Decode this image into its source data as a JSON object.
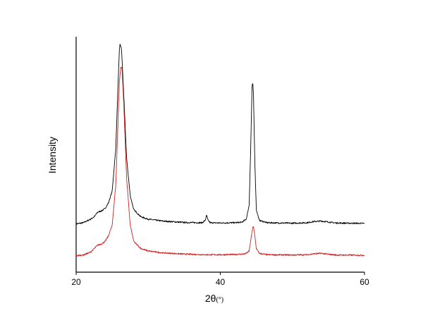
{
  "chart_data": {
    "type": "line",
    "title": "",
    "xlabel": {
      "main": "2θ",
      "unit": "(°)"
    },
    "ylabel": "Intensity",
    "xlim": [
      20,
      60
    ],
    "ylim": [
      0,
      1
    ],
    "xticks": [
      20,
      40,
      60
    ],
    "x_tick_labels": [
      "20",
      "40",
      "60"
    ],
    "grid": false,
    "legend": "none",
    "y_ticks_shown": false,
    "series": [
      {
        "color": "#000000",
        "offset": 0.205,
        "points": [
          [
            20.0,
            0.0
          ],
          [
            21.0,
            0.005
          ],
          [
            22.0,
            0.02
          ],
          [
            22.5,
            0.03
          ],
          [
            23.0,
            0.05
          ],
          [
            23.5,
            0.055
          ],
          [
            24.0,
            0.065
          ],
          [
            24.5,
            0.09
          ],
          [
            25.0,
            0.14
          ],
          [
            25.5,
            0.32
          ],
          [
            25.8,
            0.58
          ],
          [
            26.0,
            0.74
          ],
          [
            26.1,
            0.765
          ],
          [
            26.3,
            0.74
          ],
          [
            26.6,
            0.55
          ],
          [
            27.0,
            0.28
          ],
          [
            27.5,
            0.12
          ],
          [
            28.0,
            0.06
          ],
          [
            29.0,
            0.03
          ],
          [
            30.0,
            0.02
          ],
          [
            32.0,
            0.012
          ],
          [
            35.0,
            0.006
          ],
          [
            37.5,
            0.005
          ],
          [
            37.9,
            0.015
          ],
          [
            38.1,
            0.037
          ],
          [
            38.3,
            0.015
          ],
          [
            38.6,
            0.005
          ],
          [
            40.0,
            0.004
          ],
          [
            42.0,
            0.005
          ],
          [
            43.0,
            0.007
          ],
          [
            43.6,
            0.02
          ],
          [
            44.0,
            0.08
          ],
          [
            44.2,
            0.3
          ],
          [
            44.4,
            0.58
          ],
          [
            44.5,
            0.6
          ],
          [
            44.6,
            0.55
          ],
          [
            44.8,
            0.25
          ],
          [
            45.0,
            0.06
          ],
          [
            45.4,
            0.015
          ],
          [
            46.5,
            0.005
          ],
          [
            50.0,
            0.003
          ],
          [
            52.0,
            0.005
          ],
          [
            53.0,
            0.01
          ],
          [
            54.0,
            0.012
          ],
          [
            55.0,
            0.008
          ],
          [
            56.0,
            0.004
          ],
          [
            60.0,
            0.002
          ]
        ]
      },
      {
        "color": "#d42020",
        "offset": 0.07,
        "points": [
          [
            20.0,
            0.0
          ],
          [
            21.0,
            0.003
          ],
          [
            22.0,
            0.015
          ],
          [
            22.5,
            0.03
          ],
          [
            23.0,
            0.045
          ],
          [
            23.5,
            0.05
          ],
          [
            24.0,
            0.06
          ],
          [
            24.5,
            0.085
          ],
          [
            25.0,
            0.13
          ],
          [
            25.5,
            0.3
          ],
          [
            25.8,
            0.56
          ],
          [
            26.0,
            0.74
          ],
          [
            26.2,
            0.8
          ],
          [
            26.35,
            0.8
          ],
          [
            26.6,
            0.65
          ],
          [
            27.0,
            0.33
          ],
          [
            27.5,
            0.13
          ],
          [
            28.0,
            0.06
          ],
          [
            29.0,
            0.03
          ],
          [
            30.0,
            0.02
          ],
          [
            32.0,
            0.012
          ],
          [
            35.0,
            0.007
          ],
          [
            38.0,
            0.004
          ],
          [
            40.0,
            0.004
          ],
          [
            42.0,
            0.005
          ],
          [
            43.5,
            0.008
          ],
          [
            44.0,
            0.02
          ],
          [
            44.2,
            0.06
          ],
          [
            44.5,
            0.12
          ],
          [
            44.6,
            0.125
          ],
          [
            44.8,
            0.08
          ],
          [
            45.0,
            0.03
          ],
          [
            45.4,
            0.01
          ],
          [
            46.5,
            0.004
          ],
          [
            50.0,
            0.003
          ],
          [
            52.0,
            0.004
          ],
          [
            53.0,
            0.008
          ],
          [
            54.0,
            0.01
          ],
          [
            55.0,
            0.006
          ],
          [
            56.0,
            0.003
          ],
          [
            60.0,
            0.002
          ]
        ]
      }
    ]
  }
}
